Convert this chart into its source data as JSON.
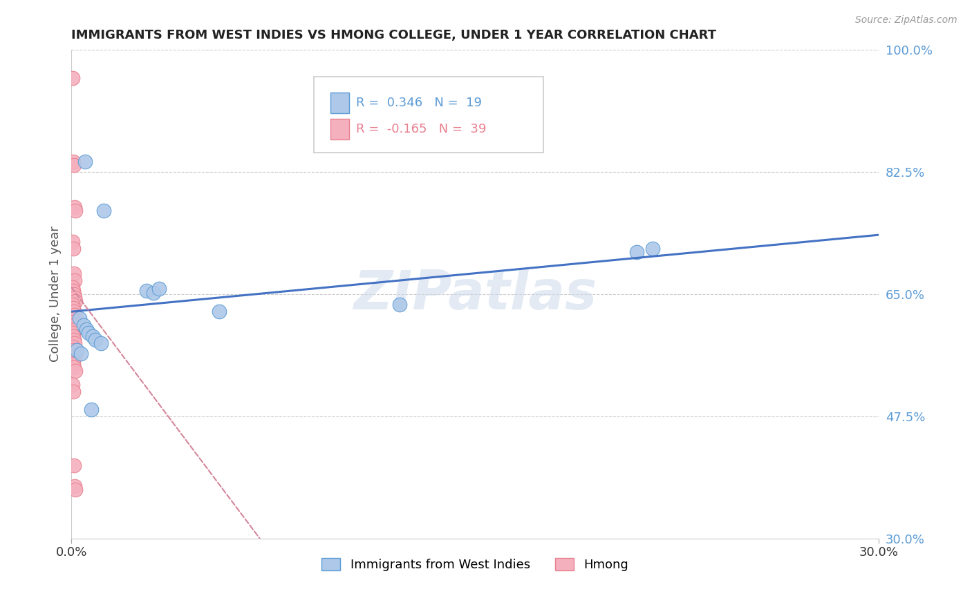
{
  "title": "IMMIGRANTS FROM WEST INDIES VS HMONG COLLEGE, UNDER 1 YEAR CORRELATION CHART",
  "source_text": "Source: ZipAtlas.com",
  "ylabel": "College, Under 1 year",
  "xmin": 0.0,
  "xmax": 30.0,
  "ymin": 30.0,
  "ymax": 100.0,
  "yticks": [
    30.0,
    47.5,
    65.0,
    82.5,
    100.0
  ],
  "r_west_indies": 0.346,
  "n_west_indies": 19,
  "r_hmong": -0.165,
  "n_hmong": 39,
  "legend_label_1": "Immigrants from West Indies",
  "legend_label_2": "Hmong",
  "blue_fill": "#adc8e8",
  "pink_fill": "#f5b0be",
  "blue_edge": "#5b9bd5",
  "pink_edge": "#e8808f",
  "blue_line": "#4472c4",
  "pink_line": "#d4869a",
  "watermark": "ZIPatlas",
  "west_indies_x": [
    0.5,
    1.2,
    2.8,
    3.05,
    3.25,
    0.3,
    0.45,
    0.55,
    0.65,
    0.8,
    0.9,
    1.1,
    5.5,
    21.0,
    21.6,
    12.2,
    0.2,
    0.35,
    0.75
  ],
  "west_indies_y": [
    84.0,
    77.0,
    65.5,
    65.2,
    65.8,
    61.5,
    60.5,
    60.0,
    59.5,
    59.0,
    58.5,
    58.0,
    62.5,
    71.0,
    71.5,
    63.5,
    57.0,
    56.5,
    48.5
  ],
  "hmong_x": [
    0.05,
    0.08,
    0.1,
    0.12,
    0.15,
    0.05,
    0.08,
    0.1,
    0.12,
    0.05,
    0.08,
    0.1,
    0.12,
    0.15,
    0.05,
    0.08,
    0.1,
    0.12,
    0.05,
    0.08,
    0.1,
    0.15,
    0.05,
    0.08,
    0.1,
    0.12,
    0.05,
    0.08,
    0.1,
    0.12,
    0.05,
    0.08,
    0.1,
    0.15,
    0.05,
    0.08,
    0.1,
    0.12,
    0.15
  ],
  "hmong_y": [
    96.0,
    84.0,
    83.5,
    77.5,
    77.0,
    72.5,
    71.5,
    68.0,
    67.0,
    66.0,
    65.5,
    65.0,
    64.5,
    64.0,
    63.5,
    63.0,
    62.5,
    62.0,
    61.5,
    61.0,
    60.5,
    60.0,
    59.5,
    59.0,
    58.5,
    58.0,
    57.5,
    57.0,
    56.5,
    56.0,
    55.5,
    55.0,
    54.5,
    54.0,
    52.0,
    51.0,
    40.5,
    37.5,
    37.0
  ],
  "blue_trend_x0": 0.0,
  "blue_trend_y0": 62.5,
  "blue_trend_x1": 30.0,
  "blue_trend_y1": 73.5,
  "pink_trend_x0": 0.0,
  "pink_trend_y0": 66.0,
  "pink_trend_x1": 7.0,
  "pink_trend_y1": 30.0
}
